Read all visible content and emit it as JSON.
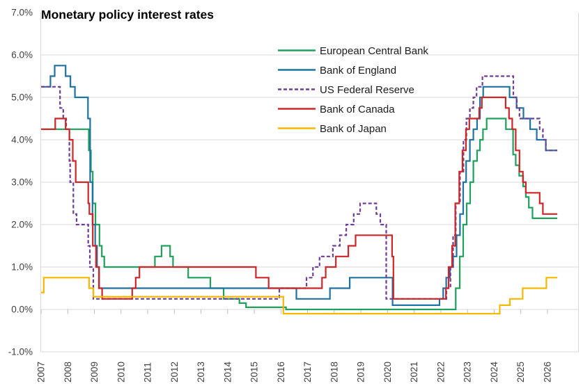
{
  "title": "Monetary policy interest rates",
  "colors": {
    "grid": "#D9D9D9",
    "axis_tick": "#BFBFBF",
    "axis_label": "#3F3F3F",
    "background": "#FFFFFF"
  },
  "chart_data": {
    "type": "line",
    "subtype": "step",
    "unit": "percent",
    "grid": "horizontal",
    "legend_position": "top-right-overlay",
    "y_axis": {
      "min": -1,
      "max": 7,
      "step": 1,
      "tick_labels": [
        "7.0%",
        "6.0%",
        "5.0%",
        "4.0%",
        "3.0%",
        "2.0%",
        "1.0%",
        "0.0%",
        "-1.0%"
      ]
    },
    "x_axis": {
      "years": [
        2007,
        2008,
        2009,
        2010,
        2011,
        2012,
        2013,
        2014,
        2015,
        2016,
        2017,
        2018,
        2019,
        2020,
        2021,
        2022,
        2023,
        2024,
        2025,
        2026
      ],
      "data_end": 2026.37
    },
    "series": [
      {
        "name": "European Central Bank",
        "color": "#1FA05C",
        "dash": false,
        "steps": [
          [
            2007.0,
            4.25
          ],
          [
            2008.79,
            3.75
          ],
          [
            2008.87,
            3.25
          ],
          [
            2008.94,
            2.5
          ],
          [
            2009.04,
            2.0
          ],
          [
            2009.19,
            1.5
          ],
          [
            2009.28,
            1.25
          ],
          [
            2009.37,
            1.0
          ],
          [
            2011.27,
            1.25
          ],
          [
            2011.52,
            1.5
          ],
          [
            2011.84,
            1.25
          ],
          [
            2011.95,
            1.0
          ],
          [
            2012.52,
            0.75
          ],
          [
            2013.35,
            0.5
          ],
          [
            2013.85,
            0.25
          ],
          [
            2014.44,
            0.15
          ],
          [
            2014.69,
            0.05
          ],
          [
            2016.19,
            0.0
          ],
          [
            2022.56,
            0.5
          ],
          [
            2022.71,
            1.25
          ],
          [
            2022.84,
            2.0
          ],
          [
            2022.97,
            2.5
          ],
          [
            2023.1,
            3.0
          ],
          [
            2023.22,
            3.5
          ],
          [
            2023.36,
            3.75
          ],
          [
            2023.47,
            4.0
          ],
          [
            2023.58,
            4.25
          ],
          [
            2023.72,
            4.5
          ],
          [
            2024.44,
            4.25
          ],
          [
            2024.71,
            3.65
          ],
          [
            2024.81,
            3.4
          ],
          [
            2024.94,
            3.15
          ],
          [
            2025.09,
            2.9
          ],
          [
            2025.19,
            2.65
          ],
          [
            2025.3,
            2.4
          ],
          [
            2025.44,
            2.15
          ]
        ]
      },
      {
        "name": "Bank of England",
        "color": "#1F72A1",
        "dash": false,
        "steps": [
          [
            2007.0,
            5.25
          ],
          [
            2007.35,
            5.5
          ],
          [
            2007.51,
            5.75
          ],
          [
            2007.92,
            5.5
          ],
          [
            2008.1,
            5.25
          ],
          [
            2008.27,
            5.0
          ],
          [
            2008.76,
            4.5
          ],
          [
            2008.84,
            3.0
          ],
          [
            2008.93,
            2.0
          ],
          [
            2009.03,
            1.5
          ],
          [
            2009.1,
            1.0
          ],
          [
            2009.18,
            0.5
          ],
          [
            2016.58,
            0.25
          ],
          [
            2017.84,
            0.5
          ],
          [
            2018.58,
            0.75
          ],
          [
            2020.19,
            0.1
          ],
          [
            2021.95,
            0.25
          ],
          [
            2022.09,
            0.5
          ],
          [
            2022.2,
            0.75
          ],
          [
            2022.34,
            1.0
          ],
          [
            2022.46,
            1.25
          ],
          [
            2022.59,
            1.75
          ],
          [
            2022.72,
            2.25
          ],
          [
            2022.84,
            3.0
          ],
          [
            2022.95,
            3.5
          ],
          [
            2023.09,
            4.0
          ],
          [
            2023.22,
            4.25
          ],
          [
            2023.36,
            4.5
          ],
          [
            2023.47,
            5.0
          ],
          [
            2023.59,
            5.25
          ],
          [
            2024.58,
            5.0
          ],
          [
            2024.84,
            4.75
          ],
          [
            2025.1,
            4.5
          ],
          [
            2025.35,
            4.25
          ],
          [
            2025.6,
            4.0
          ],
          [
            2025.94,
            3.75
          ]
        ]
      },
      {
        "name": "US Federal Reserve",
        "color": "#6C3E98",
        "dash": true,
        "steps": [
          [
            2007.0,
            5.25
          ],
          [
            2007.71,
            4.75
          ],
          [
            2007.83,
            4.5
          ],
          [
            2007.94,
            4.25
          ],
          [
            2008.06,
            3.5
          ],
          [
            2008.09,
            3.0
          ],
          [
            2008.21,
            2.25
          ],
          [
            2008.33,
            2.0
          ],
          [
            2008.77,
            1.5
          ],
          [
            2008.83,
            1.0
          ],
          [
            2008.96,
            0.25
          ],
          [
            2015.94,
            0.5
          ],
          [
            2016.96,
            0.75
          ],
          [
            2017.2,
            1.0
          ],
          [
            2017.45,
            1.25
          ],
          [
            2017.95,
            1.5
          ],
          [
            2018.21,
            1.75
          ],
          [
            2018.45,
            2.0
          ],
          [
            2018.73,
            2.25
          ],
          [
            2018.97,
            2.5
          ],
          [
            2019.58,
            2.25
          ],
          [
            2019.73,
            2.0
          ],
          [
            2019.95,
            0.25
          ],
          [
            2022.21,
            0.5
          ],
          [
            2022.36,
            1.0
          ],
          [
            2022.46,
            1.75
          ],
          [
            2022.56,
            2.5
          ],
          [
            2022.72,
            3.25
          ],
          [
            2022.85,
            4.0
          ],
          [
            2022.96,
            4.5
          ],
          [
            2023.09,
            4.75
          ],
          [
            2023.22,
            5.0
          ],
          [
            2023.34,
            5.25
          ],
          [
            2023.56,
            5.5
          ],
          [
            2024.72,
            5.0
          ],
          [
            2024.85,
            4.75
          ],
          [
            2024.95,
            4.5
          ],
          [
            2025.71,
            4.25
          ],
          [
            2025.83,
            4.0
          ],
          [
            2025.94,
            3.75
          ]
        ]
      },
      {
        "name": "Bank of Canada",
        "color": "#CE2527",
        "dash": false,
        "steps": [
          [
            2007.0,
            4.25
          ],
          [
            2007.53,
            4.5
          ],
          [
            2007.92,
            4.25
          ],
          [
            2008.06,
            4.0
          ],
          [
            2008.19,
            3.5
          ],
          [
            2008.3,
            3.0
          ],
          [
            2008.77,
            2.5
          ],
          [
            2008.81,
            2.25
          ],
          [
            2008.94,
            1.5
          ],
          [
            2009.06,
            1.0
          ],
          [
            2009.17,
            0.5
          ],
          [
            2009.29,
            0.25
          ],
          [
            2010.42,
            0.5
          ],
          [
            2010.55,
            0.75
          ],
          [
            2010.69,
            1.0
          ],
          [
            2015.06,
            0.75
          ],
          [
            2015.54,
            0.5
          ],
          [
            2017.54,
            0.75
          ],
          [
            2017.68,
            1.0
          ],
          [
            2018.06,
            1.25
          ],
          [
            2018.53,
            1.5
          ],
          [
            2018.8,
            1.75
          ],
          [
            2020.17,
            1.25
          ],
          [
            2020.22,
            0.25
          ],
          [
            2022.19,
            0.5
          ],
          [
            2022.29,
            1.0
          ],
          [
            2022.42,
            1.5
          ],
          [
            2022.54,
            2.5
          ],
          [
            2022.69,
            3.25
          ],
          [
            2022.81,
            3.75
          ],
          [
            2022.94,
            4.25
          ],
          [
            2023.07,
            4.5
          ],
          [
            2023.44,
            4.75
          ],
          [
            2023.54,
            5.0
          ],
          [
            2024.43,
            4.75
          ],
          [
            2024.56,
            4.5
          ],
          [
            2024.68,
            4.25
          ],
          [
            2024.81,
            3.75
          ],
          [
            2024.95,
            3.25
          ],
          [
            2025.08,
            3.0
          ],
          [
            2025.19,
            2.75
          ],
          [
            2025.71,
            2.5
          ],
          [
            2025.83,
            2.25
          ]
        ]
      },
      {
        "name": "Bank of Japan",
        "color": "#F5B700",
        "dash": false,
        "steps": [
          [
            2007.0,
            0.4
          ],
          [
            2007.1,
            0.75
          ],
          [
            2008.8,
            0.5
          ],
          [
            2008.96,
            0.3
          ],
          [
            2016.09,
            -0.1
          ],
          [
            2024.21,
            0.1
          ],
          [
            2024.59,
            0.25
          ],
          [
            2025.07,
            0.5
          ],
          [
            2025.96,
            0.75
          ]
        ]
      }
    ]
  }
}
